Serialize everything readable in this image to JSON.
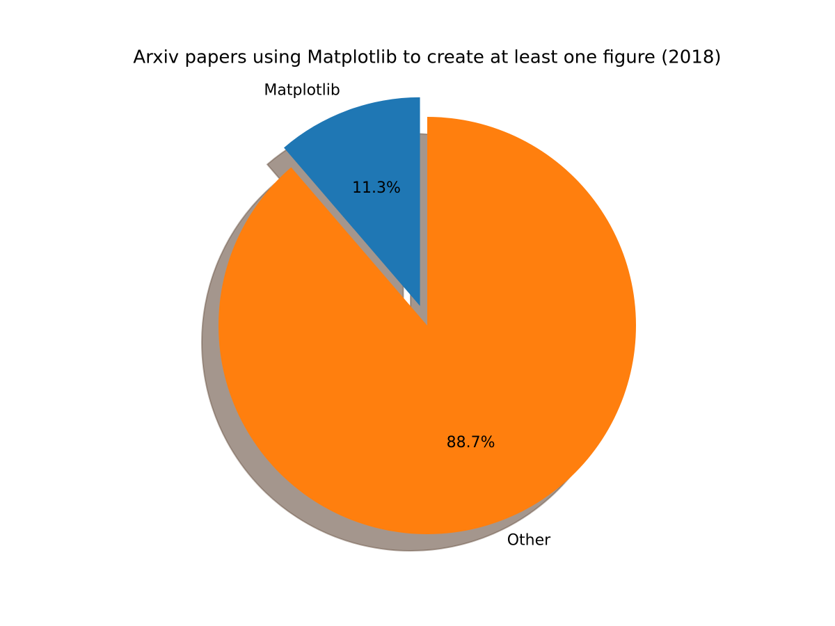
{
  "chart_data": {
    "type": "pie",
    "title": "Arxiv papers using Matplotlib to create at least one figure (2018)",
    "categories": [
      "Matplotlib",
      "Other"
    ],
    "values": [
      11.3,
      88.7
    ],
    "value_labels": [
      "11.3%",
      "88.7%"
    ],
    "colors": [
      "#1f77b4",
      "#ff7f0e"
    ],
    "explode": [
      0.1,
      0
    ],
    "startangle": 90,
    "shadow": true
  }
}
